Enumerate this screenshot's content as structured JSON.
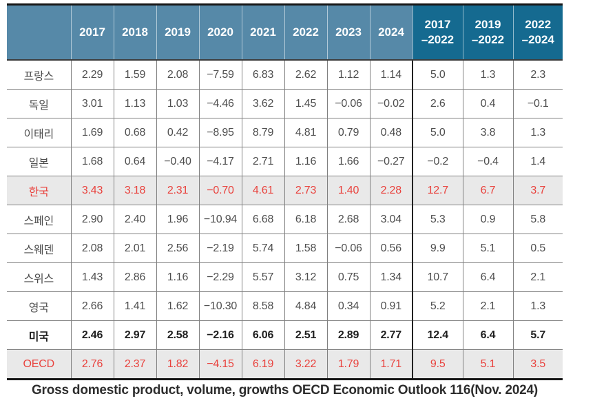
{
  "caption": "Gross domestic product, volume, growths OECD Economic Outlook 116(Nov. 2024)",
  "colors": {
    "header_year_bg": "#5689a8",
    "header_period_bg": "#156a90",
    "header_text": "#ffffff",
    "highlight_text": "#e9423d",
    "highlight_row_bg": "#e9e9e9",
    "bold_row_text": "#1e1e1e",
    "body_text": "#4e4e4e",
    "grid_line": "#808080",
    "frame_line": "#161616"
  },
  "chart_data": {
    "type": "table",
    "title": "",
    "columns": [
      "2017",
      "2018",
      "2019",
      "2020",
      "2021",
      "2022",
      "2023",
      "2024",
      "2017\n–2022",
      "2019\n–2022",
      "2022\n–2024"
    ],
    "rows": [
      {
        "label": "프랑스",
        "style": "",
        "values": [
          "2.29",
          "1.59",
          "2.08",
          "−7.59",
          "6.83",
          "2.62",
          "1.12",
          "1.14",
          "5.0",
          "1.3",
          "2.3"
        ]
      },
      {
        "label": "독일",
        "style": "",
        "values": [
          "3.01",
          "1.13",
          "1.03",
          "−4.46",
          "3.62",
          "1.45",
          "−0.06",
          "−0.02",
          "2.6",
          "0.4",
          "−0.1"
        ]
      },
      {
        "label": "이태리",
        "style": "",
        "values": [
          "1.69",
          "0.68",
          "0.42",
          "−8.95",
          "8.79",
          "4.81",
          "0.79",
          "0.48",
          "5.0",
          "3.8",
          "1.3"
        ]
      },
      {
        "label": "일본",
        "style": "",
        "values": [
          "1.68",
          "0.64",
          "−0.40",
          "−4.17",
          "2.71",
          "1.16",
          "1.66",
          "−0.27",
          "−0.2",
          "−0.4",
          "1.4"
        ]
      },
      {
        "label": "한국",
        "style": "red",
        "values": [
          "3.43",
          "3.18",
          "2.31",
          "−0.70",
          "4.61",
          "2.73",
          "1.40",
          "2.28",
          "12.7",
          "6.7",
          "3.7"
        ]
      },
      {
        "label": "스페인",
        "style": "",
        "values": [
          "2.90",
          "2.40",
          "1.96",
          "−10.94",
          "6.68",
          "6.18",
          "2.68",
          "3.04",
          "5.3",
          "0.9",
          "5.8"
        ]
      },
      {
        "label": "스웨덴",
        "style": "",
        "values": [
          "2.08",
          "2.01",
          "2.56",
          "−2.19",
          "5.74",
          "1.58",
          "−0.06",
          "0.56",
          "9.9",
          "5.1",
          "0.5"
        ]
      },
      {
        "label": "스위스",
        "style": "",
        "values": [
          "1.43",
          "2.86",
          "1.16",
          "−2.29",
          "5.57",
          "3.12",
          "0.75",
          "1.34",
          "10.7",
          "6.4",
          "2.1"
        ]
      },
      {
        "label": "영국",
        "style": "",
        "values": [
          "2.66",
          "1.41",
          "1.62",
          "−10.30",
          "8.58",
          "4.84",
          "0.34",
          "0.91",
          "5.2",
          "2.1",
          "1.3"
        ]
      },
      {
        "label": "미국",
        "style": "bold",
        "values": [
          "2.46",
          "2.97",
          "2.58",
          "−2.16",
          "6.06",
          "2.51",
          "2.89",
          "2.77",
          "12.4",
          "6.4",
          "5.7"
        ]
      },
      {
        "label": "OECD",
        "style": "red",
        "values": [
          "2.76",
          "2.37",
          "1.82",
          "−4.15",
          "6.19",
          "3.22",
          "1.79",
          "1.71",
          "9.5",
          "5.1",
          "3.5"
        ]
      }
    ],
    "layout": {
      "year_columns_count": 8,
      "period_columns_count": 3,
      "legend_position": "none",
      "grid": "on"
    }
  }
}
